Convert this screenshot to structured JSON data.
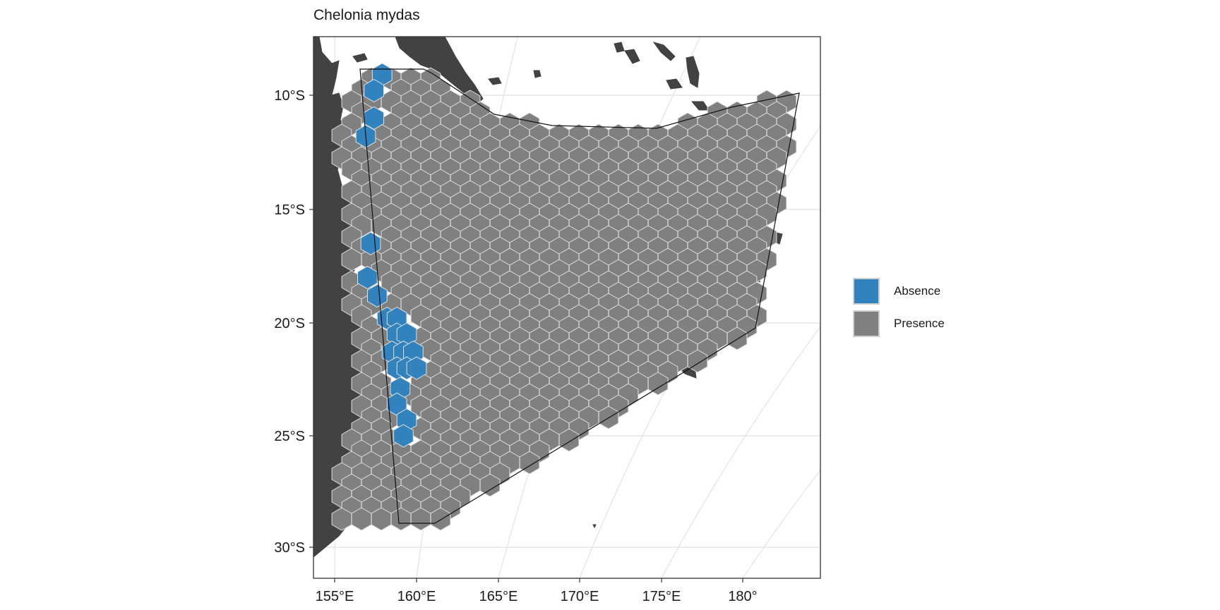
{
  "title": "Chelonia mydas",
  "colors": {
    "absence": "#3182bd",
    "presence": "#808080",
    "land": "#424242",
    "grid": "#e6e6e6",
    "panel_border": "#333333",
    "hex_border": "#e0e0e0"
  },
  "legend": {
    "items": [
      {
        "label": "Absence",
        "color": "#3182bd"
      },
      {
        "label": "Presence",
        "color": "#808080"
      }
    ]
  },
  "axes": {
    "x_ticks": [
      "155°E",
      "160°E",
      "165°E",
      "170°E",
      "175°E",
      "180°"
    ],
    "y_ticks": [
      "10°S",
      "15°S",
      "20°S",
      "25°S",
      "30°S"
    ]
  },
  "chart_data": {
    "type": "map",
    "title": "Chelonia mydas",
    "fill_categories": [
      "Absence",
      "Presence"
    ],
    "xlim_lon": [
      154.5,
      184
    ],
    "ylim_lat": [
      -31.5,
      -7.5
    ],
    "grid": true,
    "legend_position": "right",
    "absence_cells": [
      {
        "lon": 157.9,
        "lat": -9.1
      },
      {
        "lon": 157.4,
        "lat": -9.8
      },
      {
        "lon": 157.4,
        "lat": -11.0
      },
      {
        "lon": 156.9,
        "lat": -11.8
      },
      {
        "lon": 157.2,
        "lat": -16.5
      },
      {
        "lon": 157.0,
        "lat": -18.0
      },
      {
        "lon": 157.6,
        "lat": -18.8
      },
      {
        "lon": 158.2,
        "lat": -19.8
      },
      {
        "lon": 158.8,
        "lat": -19.8
      },
      {
        "lon": 158.8,
        "lat": -20.5
      },
      {
        "lon": 159.4,
        "lat": -20.5
      },
      {
        "lon": 158.5,
        "lat": -21.3
      },
      {
        "lon": 159.2,
        "lat": -21.3
      },
      {
        "lon": 159.8,
        "lat": -21.3
      },
      {
        "lon": 158.8,
        "lat": -22.0
      },
      {
        "lon": 159.4,
        "lat": -22.0
      },
      {
        "lon": 160.0,
        "lat": -22.0
      },
      {
        "lon": 159.0,
        "lat": -22.9
      },
      {
        "lon": 158.8,
        "lat": -23.6
      },
      {
        "lon": 159.4,
        "lat": -24.3
      },
      {
        "lon": 159.2,
        "lat": -25.0
      }
    ],
    "presence_area": "all remaining hex cells inside the study polygon"
  }
}
